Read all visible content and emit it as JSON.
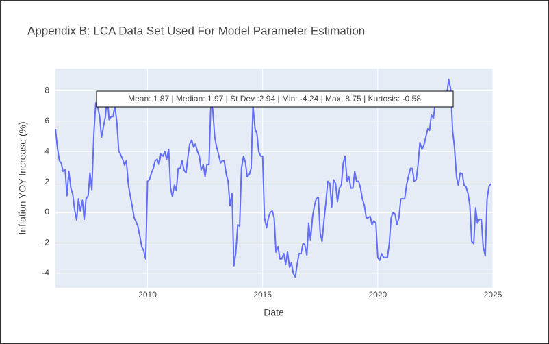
{
  "chart_data": {
    "type": "line",
    "title": "Appendix B: LCA Data Set Used For Model Parameter Estimation",
    "xlabel": "Date",
    "ylabel": "Inflation YOY Increase (%)",
    "annotation": "Mean: 1.87 | Median: 1.97 | St Dev :2.94 | Min: -4.24 | Max: 8.75 | Kurtosis: -0.58",
    "xlim": [
      2006,
      2025
    ],
    "xticks": [
      2010,
      2015,
      2020,
      2025
    ],
    "ylim": [
      -4.95,
      9.46
    ],
    "yticks": [
      -4,
      -2,
      0,
      2,
      4,
      6,
      8
    ],
    "grid": true,
    "x": [
      2006,
      2006.08,
      2006.17,
      2006.25,
      2006.33,
      2006.42,
      2006.5,
      2006.58,
      2006.67,
      2006.75,
      2006.83,
      2006.92,
      2007,
      2007.08,
      2007.17,
      2007.25,
      2007.33,
      2007.42,
      2007.5,
      2007.58,
      2007.67,
      2007.75,
      2007.83,
      2007.92,
      2008,
      2008.08,
      2008.17,
      2008.25,
      2008.33,
      2008.42,
      2008.5,
      2008.58,
      2008.67,
      2008.75,
      2008.83,
      2008.92,
      2009,
      2009.08,
      2009.17,
      2009.25,
      2009.33,
      2009.42,
      2009.5,
      2009.58,
      2009.67,
      2009.75,
      2009.83,
      2009.92,
      2010,
      2010.08,
      2010.17,
      2010.25,
      2010.33,
      2010.42,
      2010.5,
      2010.58,
      2010.67,
      2010.75,
      2010.83,
      2010.92,
      2011,
      2011.08,
      2011.17,
      2011.25,
      2011.33,
      2011.42,
      2011.5,
      2011.58,
      2011.67,
      2011.75,
      2011.83,
      2011.92,
      2012,
      2012.08,
      2012.17,
      2012.25,
      2012.33,
      2012.42,
      2012.5,
      2012.58,
      2012.67,
      2012.75,
      2012.83,
      2012.92,
      2013,
      2013.08,
      2013.17,
      2013.25,
      2013.33,
      2013.42,
      2013.5,
      2013.58,
      2013.67,
      2013.75,
      2013.83,
      2013.92,
      2014,
      2014.08,
      2014.17,
      2014.25,
      2014.33,
      2014.42,
      2014.5,
      2014.58,
      2014.67,
      2014.75,
      2014.83,
      2014.92,
      2015,
      2015.08,
      2015.17,
      2015.25,
      2015.33,
      2015.42,
      2015.5,
      2015.58,
      2015.67,
      2015.75,
      2015.83,
      2015.92,
      2016,
      2016.08,
      2016.17,
      2016.25,
      2016.33,
      2016.42,
      2016.5,
      2016.58,
      2016.67,
      2016.75,
      2016.83,
      2016.92,
      2017,
      2017.08,
      2017.17,
      2017.25,
      2017.33,
      2017.42,
      2017.5,
      2017.58,
      2017.67,
      2017.75,
      2017.83,
      2017.92,
      2018,
      2018.08,
      2018.17,
      2018.25,
      2018.33,
      2018.42,
      2018.5,
      2018.58,
      2018.67,
      2018.75,
      2018.83,
      2018.92,
      2019,
      2019.08,
      2019.17,
      2019.25,
      2019.33,
      2019.42,
      2019.5,
      2019.58,
      2019.67,
      2019.75,
      2019.83,
      2019.92,
      2020,
      2020.08,
      2020.17,
      2020.25,
      2020.33,
      2020.42,
      2020.5,
      2020.58,
      2020.67,
      2020.75,
      2020.83,
      2020.92,
      2021,
      2021.08,
      2021.17,
      2021.25,
      2021.33,
      2021.42,
      2021.5,
      2021.58,
      2021.67,
      2021.75,
      2021.83,
      2021.92,
      2022,
      2022.08,
      2022.17,
      2022.25,
      2022.33,
      2022.42,
      2022.5,
      2022.58,
      2022.67,
      2022.75,
      2022.83,
      2022.92,
      2023,
      2023.08,
      2023.17,
      2023.25,
      2023.33,
      2023.42,
      2023.5,
      2023.58,
      2023.67,
      2023.75,
      2023.83,
      2023.92,
      2024,
      2024.08,
      2024.17,
      2024.25,
      2024.33,
      2024.42,
      2024.5,
      2024.58,
      2024.67,
      2024.75,
      2024.83,
      2024.92
    ],
    "series": [
      {
        "color": "#636efa",
        "values": [
          5.5,
          4.3,
          3.4,
          3.25,
          2.7,
          2.8,
          1.1,
          2.7,
          1.6,
          1.2,
          0.2,
          -0.5,
          0.9,
          0.1,
          0.8,
          -0.45,
          0.9,
          1.1,
          2.6,
          1.5,
          5.2,
          7.2,
          7.0,
          6.3,
          4.95,
          5.6,
          6.3,
          7.7,
          6.1,
          6.3,
          6.3,
          7.0,
          5.9,
          4.05,
          3.8,
          3.5,
          3.1,
          3.4,
          1.8,
          1.1,
          0.45,
          -0.35,
          -0.6,
          -0.9,
          -1.6,
          -2.25,
          -2.5,
          -3.05,
          2.05,
          2.15,
          2.6,
          2.9,
          3.4,
          3.5,
          3.15,
          3.85,
          3.7,
          4.0,
          3.5,
          4.15,
          1.6,
          1.05,
          1.8,
          1.45,
          2.9,
          2.9,
          3.4,
          2.8,
          2.6,
          3.6,
          4.5,
          4.75,
          4.3,
          4.5,
          4.0,
          3.7,
          2.8,
          3.15,
          2.35,
          3.15,
          3.15,
          7.2,
          6.8,
          4.95,
          4.3,
          3.85,
          3.25,
          3.4,
          3.4,
          2.5,
          2.05,
          0.45,
          1.25,
          -3.5,
          -2.7,
          -0.8,
          -0.9,
          2.9,
          3.7,
          3.3,
          2.35,
          2.5,
          2.9,
          7.0,
          5.5,
          5.2,
          4.0,
          3.7,
          3.7,
          -0.35,
          -1.0,
          -0.35,
          0.0,
          0.1,
          -0.35,
          -2.6,
          -2.25,
          -3.05,
          -3.05,
          -2.7,
          -3.4,
          -2.6,
          -3.6,
          -3.3,
          -4.0,
          -4.24,
          -3.4,
          -2.7,
          -2.7,
          -2.05,
          -2.1,
          -2.8,
          -0.7,
          -1.8,
          -0.25,
          0.45,
          0.9,
          1.0,
          -1.35,
          -1.9,
          -0.45,
          0.7,
          2.05,
          1.9,
          0.35,
          2.15,
          1.9,
          0.7,
          1.6,
          1.8,
          3.25,
          3.7,
          2.05,
          2.35,
          1.6,
          1.6,
          2.7,
          2.05,
          2.05,
          1.6,
          0.9,
          0.45,
          -0.35,
          -0.35,
          -0.25,
          -0.8,
          -0.55,
          -0.7,
          -2.95,
          -3.15,
          -2.7,
          -2.95,
          -2.95,
          -2.95,
          -2.05,
          -0.35,
          0.0,
          -0.1,
          -0.8,
          -0.35,
          0.9,
          0.9,
          0.9,
          1.8,
          2.35,
          2.9,
          2.9,
          2.05,
          2.15,
          3.15,
          4.6,
          4.15,
          4.4,
          4.9,
          5.5,
          5.4,
          6.4,
          6.2,
          7.3,
          7.3,
          7.3,
          7.0,
          7.0,
          7.0,
          7.7,
          8.75,
          8.1,
          5.4,
          4.3,
          2.35,
          1.8,
          2.6,
          2.55,
          1.8,
          1.7,
          1.25,
          0.45,
          -1.9,
          -2.05,
          0.3,
          -0.7,
          -0.45,
          -0.45,
          -2.25,
          -2.85,
          0.9,
          1.7,
          1.9
        ]
      }
    ]
  }
}
